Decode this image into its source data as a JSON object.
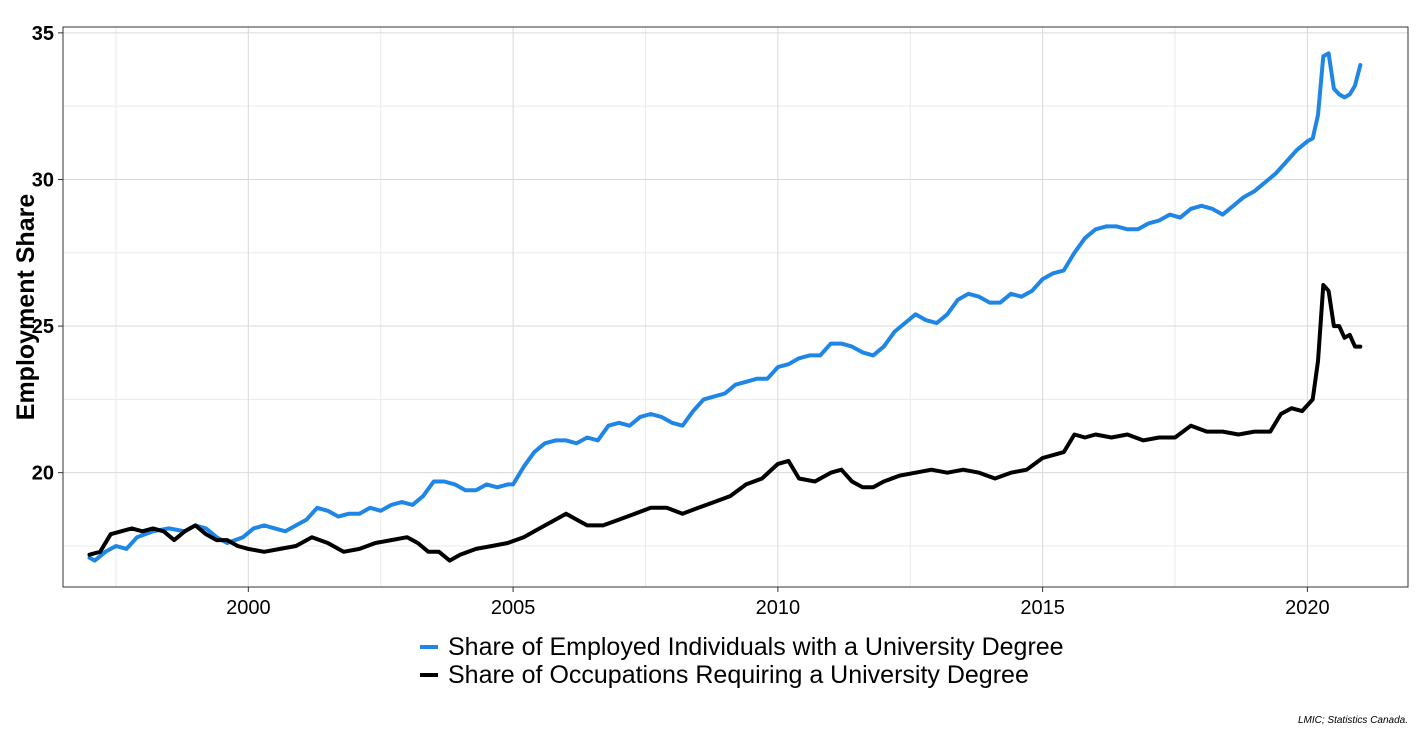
{
  "chart_data": {
    "type": "line",
    "title": "",
    "xlabel": "",
    "ylabel": "Employment Share",
    "xlim": [
      1996.5,
      2021.9
    ],
    "ylim": [
      16.1,
      35.2
    ],
    "x_ticks": [
      2000,
      2005,
      2010,
      2015,
      2020
    ],
    "y_ticks": [
      20,
      25,
      30,
      35
    ],
    "grid": true,
    "legend_position": "bottom",
    "series": [
      {
        "name": "Share of Employed Individuals with a University Degree",
        "color": "#1f86e6",
        "points": [
          [
            1997.0,
            17.1
          ],
          [
            1997.1,
            17.0
          ],
          [
            1997.3,
            17.3
          ],
          [
            1997.5,
            17.5
          ],
          [
            1997.7,
            17.4
          ],
          [
            1997.9,
            17.8
          ],
          [
            1998.2,
            18.0
          ],
          [
            1998.5,
            18.1
          ],
          [
            1998.8,
            18.0
          ],
          [
            1999.0,
            18.2
          ],
          [
            1999.2,
            18.1
          ],
          [
            1999.4,
            17.8
          ],
          [
            1999.6,
            17.6
          ],
          [
            1999.9,
            17.8
          ],
          [
            2000.1,
            18.1
          ],
          [
            2000.3,
            18.2
          ],
          [
            2000.5,
            18.1
          ],
          [
            2000.7,
            18.0
          ],
          [
            2000.9,
            18.2
          ],
          [
            2001.1,
            18.4
          ],
          [
            2001.3,
            18.8
          ],
          [
            2001.5,
            18.7
          ],
          [
            2001.7,
            18.5
          ],
          [
            2001.9,
            18.6
          ],
          [
            2002.1,
            18.6
          ],
          [
            2002.3,
            18.8
          ],
          [
            2002.5,
            18.7
          ],
          [
            2002.7,
            18.9
          ],
          [
            2002.9,
            19.0
          ],
          [
            2003.1,
            18.9
          ],
          [
            2003.3,
            19.2
          ],
          [
            2003.5,
            19.7
          ],
          [
            2003.7,
            19.7
          ],
          [
            2003.9,
            19.6
          ],
          [
            2004.1,
            19.4
          ],
          [
            2004.3,
            19.4
          ],
          [
            2004.5,
            19.6
          ],
          [
            2004.7,
            19.5
          ],
          [
            2004.9,
            19.6
          ],
          [
            2005.0,
            19.6
          ],
          [
            2005.2,
            20.2
          ],
          [
            2005.4,
            20.7
          ],
          [
            2005.6,
            21.0
          ],
          [
            2005.8,
            21.1
          ],
          [
            2006.0,
            21.1
          ],
          [
            2006.2,
            21.0
          ],
          [
            2006.4,
            21.2
          ],
          [
            2006.6,
            21.1
          ],
          [
            2006.8,
            21.6
          ],
          [
            2007.0,
            21.7
          ],
          [
            2007.2,
            21.6
          ],
          [
            2007.4,
            21.9
          ],
          [
            2007.6,
            22.0
          ],
          [
            2007.8,
            21.9
          ],
          [
            2008.0,
            21.7
          ],
          [
            2008.2,
            21.6
          ],
          [
            2008.4,
            22.1
          ],
          [
            2008.6,
            22.5
          ],
          [
            2008.8,
            22.6
          ],
          [
            2009.0,
            22.7
          ],
          [
            2009.2,
            23.0
          ],
          [
            2009.4,
            23.1
          ],
          [
            2009.6,
            23.2
          ],
          [
            2009.8,
            23.2
          ],
          [
            2010.0,
            23.6
          ],
          [
            2010.2,
            23.7
          ],
          [
            2010.4,
            23.9
          ],
          [
            2010.6,
            24.0
          ],
          [
            2010.8,
            24.0
          ],
          [
            2011.0,
            24.4
          ],
          [
            2011.2,
            24.4
          ],
          [
            2011.4,
            24.3
          ],
          [
            2011.6,
            24.1
          ],
          [
            2011.8,
            24.0
          ],
          [
            2012.0,
            24.3
          ],
          [
            2012.2,
            24.8
          ],
          [
            2012.4,
            25.1
          ],
          [
            2012.6,
            25.4
          ],
          [
            2012.8,
            25.2
          ],
          [
            2013.0,
            25.1
          ],
          [
            2013.2,
            25.4
          ],
          [
            2013.4,
            25.9
          ],
          [
            2013.6,
            26.1
          ],
          [
            2013.8,
            26.0
          ],
          [
            2014.0,
            25.8
          ],
          [
            2014.2,
            25.8
          ],
          [
            2014.4,
            26.1
          ],
          [
            2014.6,
            26.0
          ],
          [
            2014.8,
            26.2
          ],
          [
            2015.0,
            26.6
          ],
          [
            2015.2,
            26.8
          ],
          [
            2015.4,
            26.9
          ],
          [
            2015.6,
            27.5
          ],
          [
            2015.8,
            28.0
          ],
          [
            2016.0,
            28.3
          ],
          [
            2016.2,
            28.4
          ],
          [
            2016.4,
            28.4
          ],
          [
            2016.6,
            28.3
          ],
          [
            2016.8,
            28.3
          ],
          [
            2017.0,
            28.5
          ],
          [
            2017.2,
            28.6
          ],
          [
            2017.4,
            28.8
          ],
          [
            2017.6,
            28.7
          ],
          [
            2017.8,
            29.0
          ],
          [
            2018.0,
            29.1
          ],
          [
            2018.2,
            29.0
          ],
          [
            2018.4,
            28.8
          ],
          [
            2018.6,
            29.1
          ],
          [
            2018.8,
            29.4
          ],
          [
            2019.0,
            29.6
          ],
          [
            2019.2,
            29.9
          ],
          [
            2019.4,
            30.2
          ],
          [
            2019.6,
            30.6
          ],
          [
            2019.8,
            31.0
          ],
          [
            2020.0,
            31.3
          ],
          [
            2020.1,
            31.4
          ],
          [
            2020.2,
            32.2
          ],
          [
            2020.3,
            34.2
          ],
          [
            2020.4,
            34.3
          ],
          [
            2020.5,
            33.1
          ],
          [
            2020.6,
            32.9
          ],
          [
            2020.7,
            32.8
          ],
          [
            2020.8,
            32.9
          ],
          [
            2020.9,
            33.2
          ],
          [
            2021.0,
            33.9
          ]
        ]
      },
      {
        "name": "Share of Occupations Requiring a University Degree",
        "color": "#000000",
        "points": [
          [
            1997.0,
            17.2
          ],
          [
            1997.2,
            17.3
          ],
          [
            1997.4,
            17.9
          ],
          [
            1997.6,
            18.0
          ],
          [
            1997.8,
            18.1
          ],
          [
            1998.0,
            18.0
          ],
          [
            1998.2,
            18.1
          ],
          [
            1998.4,
            18.0
          ],
          [
            1998.6,
            17.7
          ],
          [
            1998.8,
            18.0
          ],
          [
            1999.0,
            18.2
          ],
          [
            1999.2,
            17.9
          ],
          [
            1999.4,
            17.7
          ],
          [
            1999.6,
            17.7
          ],
          [
            1999.8,
            17.5
          ],
          [
            2000.0,
            17.4
          ],
          [
            2000.3,
            17.3
          ],
          [
            2000.6,
            17.4
          ],
          [
            2000.9,
            17.5
          ],
          [
            2001.2,
            17.8
          ],
          [
            2001.5,
            17.6
          ],
          [
            2001.8,
            17.3
          ],
          [
            2002.1,
            17.4
          ],
          [
            2002.4,
            17.6
          ],
          [
            2002.7,
            17.7
          ],
          [
            2003.0,
            17.8
          ],
          [
            2003.2,
            17.6
          ],
          [
            2003.4,
            17.3
          ],
          [
            2003.6,
            17.3
          ],
          [
            2003.8,
            17.0
          ],
          [
            2004.0,
            17.2
          ],
          [
            2004.3,
            17.4
          ],
          [
            2004.6,
            17.5
          ],
          [
            2004.9,
            17.6
          ],
          [
            2005.2,
            17.8
          ],
          [
            2005.5,
            18.1
          ],
          [
            2005.8,
            18.4
          ],
          [
            2006.0,
            18.6
          ],
          [
            2006.2,
            18.4
          ],
          [
            2006.4,
            18.2
          ],
          [
            2006.7,
            18.2
          ],
          [
            2007.0,
            18.4
          ],
          [
            2007.3,
            18.6
          ],
          [
            2007.6,
            18.8
          ],
          [
            2007.9,
            18.8
          ],
          [
            2008.2,
            18.6
          ],
          [
            2008.5,
            18.8
          ],
          [
            2008.8,
            19.0
          ],
          [
            2009.1,
            19.2
          ],
          [
            2009.4,
            19.6
          ],
          [
            2009.7,
            19.8
          ],
          [
            2010.0,
            20.3
          ],
          [
            2010.2,
            20.4
          ],
          [
            2010.4,
            19.8
          ],
          [
            2010.7,
            19.7
          ],
          [
            2011.0,
            20.0
          ],
          [
            2011.2,
            20.1
          ],
          [
            2011.4,
            19.7
          ],
          [
            2011.6,
            19.5
          ],
          [
            2011.8,
            19.5
          ],
          [
            2012.0,
            19.7
          ],
          [
            2012.3,
            19.9
          ],
          [
            2012.6,
            20.0
          ],
          [
            2012.9,
            20.1
          ],
          [
            2013.2,
            20.0
          ],
          [
            2013.5,
            20.1
          ],
          [
            2013.8,
            20.0
          ],
          [
            2014.1,
            19.8
          ],
          [
            2014.4,
            20.0
          ],
          [
            2014.7,
            20.1
          ],
          [
            2015.0,
            20.5
          ],
          [
            2015.2,
            20.6
          ],
          [
            2015.4,
            20.7
          ],
          [
            2015.6,
            21.3
          ],
          [
            2015.8,
            21.2
          ],
          [
            2016.0,
            21.3
          ],
          [
            2016.3,
            21.2
          ],
          [
            2016.6,
            21.3
          ],
          [
            2016.9,
            21.1
          ],
          [
            2017.2,
            21.2
          ],
          [
            2017.5,
            21.2
          ],
          [
            2017.8,
            21.6
          ],
          [
            2018.1,
            21.4
          ],
          [
            2018.4,
            21.4
          ],
          [
            2018.7,
            21.3
          ],
          [
            2019.0,
            21.4
          ],
          [
            2019.3,
            21.4
          ],
          [
            2019.5,
            22.0
          ],
          [
            2019.7,
            22.2
          ],
          [
            2019.9,
            22.1
          ],
          [
            2020.1,
            22.5
          ],
          [
            2020.2,
            23.8
          ],
          [
            2020.3,
            26.4
          ],
          [
            2020.4,
            26.2
          ],
          [
            2020.5,
            25.0
          ],
          [
            2020.6,
            25.0
          ],
          [
            2020.7,
            24.6
          ],
          [
            2020.8,
            24.7
          ],
          [
            2020.9,
            24.3
          ],
          [
            2021.0,
            24.3
          ]
        ]
      }
    ]
  },
  "caption": "LMIC; Statistics Canada."
}
